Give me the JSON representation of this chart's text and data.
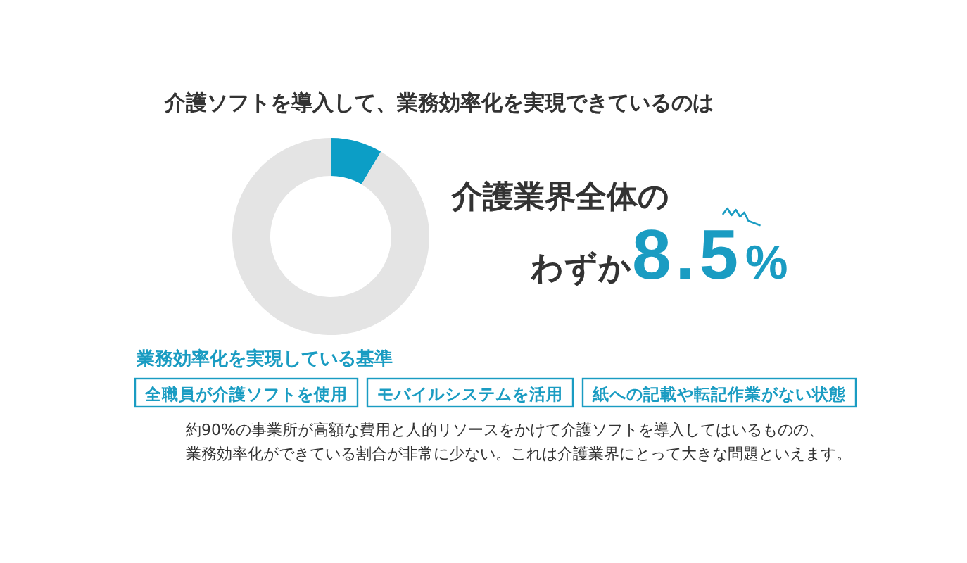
{
  "chart_data": {
    "type": "donut",
    "title": "介護ソフトを導入して、業務効率化を実現できているのは",
    "categories": [
      null,
      null
    ],
    "values": [
      8.5,
      91.5
    ],
    "colors": [
      "#0c9ec6",
      "#e4e4e4"
    ],
    "annotations": [
      "介護業界全体の",
      "わずか8.5%",
      "業務効率化を実現している基準",
      "全職員が介護ソフトを使用",
      "モバイルシステムを活用",
      "紙への記載や転記作業がない状態",
      "約90%の事業所が高額な費用と人的リソースをかけて介護ソフトを導入してはいるものの、",
      "業務効率化ができている割合が非常に少ない。これは介護業界にとって大きな問題といえます。"
    ]
  }
}
